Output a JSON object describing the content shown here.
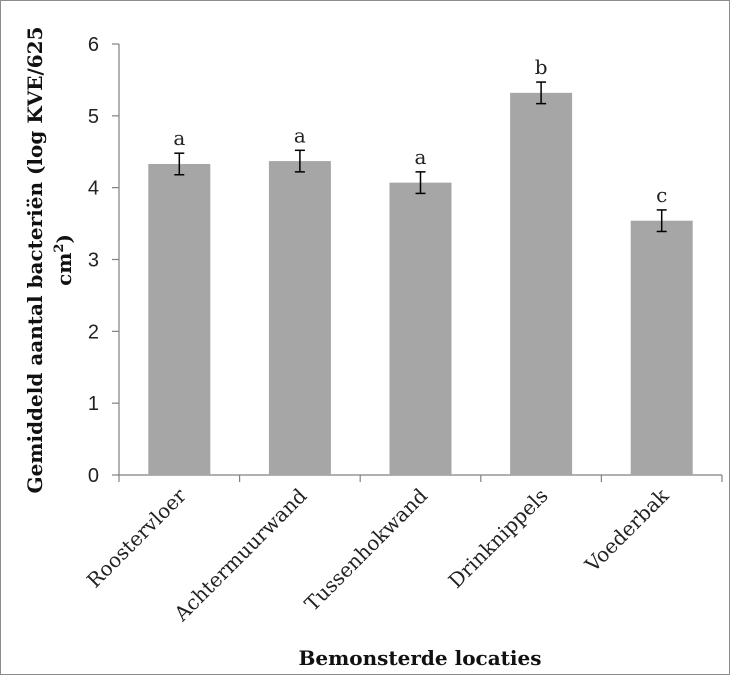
{
  "chart_data": {
    "type": "bar",
    "categories": [
      "Roostervloer",
      "Achtermuurwand",
      "Tussenhokwand",
      "Drinknippels",
      "Voederbak"
    ],
    "values": [
      4.33,
      4.37,
      4.07,
      5.32,
      3.54
    ],
    "error": [
      0.15,
      0.15,
      0.15,
      0.15,
      0.15
    ],
    "significance": [
      "a",
      "a",
      "a",
      "b",
      "c"
    ],
    "xlabel": "Bemonsterde locaties",
    "ylabel_line1": "Gemiddeld aantal bacteriën (log KVE/625",
    "ylabel_line2_base": "cm",
    "ylabel_line2_sup": "2",
    "ylabel_line2_end": ")",
    "ylim": [
      0,
      6
    ],
    "yticks": [
      "0",
      "1",
      "2",
      "3",
      "4",
      "5",
      "6"
    ],
    "bar_color": "#a6a6a6",
    "axis_color": "#808080",
    "grid": false,
    "legend": "none"
  }
}
